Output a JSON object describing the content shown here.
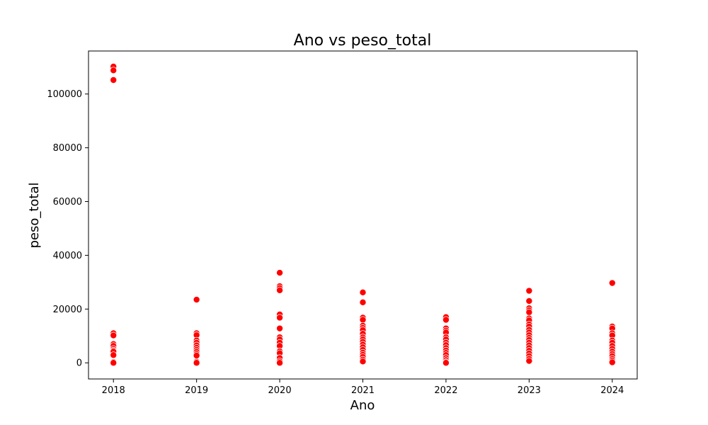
{
  "chart_data": {
    "type": "scatter",
    "title": "Ano vs peso_total",
    "xlabel": "Ano",
    "ylabel": "peso_total",
    "x_ticks": [
      "2018",
      "2019",
      "2020",
      "2021",
      "2022",
      "2023",
      "2024"
    ],
    "y_ticks": [
      "0",
      "20000",
      "40000",
      "60000",
      "80000",
      "100000"
    ],
    "xlim": [
      2017.7,
      2024.3
    ],
    "ylim": [
      -6000,
      116000
    ],
    "grid": false,
    "legend": "none",
    "marker_color": "#ff0000",
    "marker_edge_color": "#ffffff",
    "points": [
      {
        "x": 2018,
        "y": 110200
      },
      {
        "x": 2018,
        "y": 108800
      },
      {
        "x": 2018,
        "y": 105200
      },
      {
        "x": 2018,
        "y": 11000
      },
      {
        "x": 2018,
        "y": 10200
      },
      {
        "x": 2018,
        "y": 7000
      },
      {
        "x": 2018,
        "y": 6300
      },
      {
        "x": 2018,
        "y": 5200
      },
      {
        "x": 2018,
        "y": 4600
      },
      {
        "x": 2018,
        "y": 4200
      },
      {
        "x": 2018,
        "y": 2900
      },
      {
        "x": 2018,
        "y": 300
      },
      {
        "x": 2018,
        "y": 0
      },
      {
        "x": 2019,
        "y": 23500
      },
      {
        "x": 2019,
        "y": 11000
      },
      {
        "x": 2019,
        "y": 10300
      },
      {
        "x": 2019,
        "y": 8300
      },
      {
        "x": 2019,
        "y": 7500
      },
      {
        "x": 2019,
        "y": 6500
      },
      {
        "x": 2019,
        "y": 5600
      },
      {
        "x": 2019,
        "y": 4800
      },
      {
        "x": 2019,
        "y": 4100
      },
      {
        "x": 2019,
        "y": 3300
      },
      {
        "x": 2019,
        "y": 2700
      },
      {
        "x": 2019,
        "y": 400
      },
      {
        "x": 2019,
        "y": 0
      },
      {
        "x": 2020,
        "y": 33500
      },
      {
        "x": 2020,
        "y": 28500
      },
      {
        "x": 2020,
        "y": 27800
      },
      {
        "x": 2020,
        "y": 27000
      },
      {
        "x": 2020,
        "y": 18000
      },
      {
        "x": 2020,
        "y": 16800
      },
      {
        "x": 2020,
        "y": 12800
      },
      {
        "x": 2020,
        "y": 9500
      },
      {
        "x": 2020,
        "y": 8700
      },
      {
        "x": 2020,
        "y": 7500
      },
      {
        "x": 2020,
        "y": 6300
      },
      {
        "x": 2020,
        "y": 4300
      },
      {
        "x": 2020,
        "y": 3600
      },
      {
        "x": 2020,
        "y": 1800
      },
      {
        "x": 2020,
        "y": 600
      },
      {
        "x": 2020,
        "y": 0
      },
      {
        "x": 2021,
        "y": 26200
      },
      {
        "x": 2021,
        "y": 22500
      },
      {
        "x": 2021,
        "y": 16800
      },
      {
        "x": 2021,
        "y": 16000
      },
      {
        "x": 2021,
        "y": 13800
      },
      {
        "x": 2021,
        "y": 13000
      },
      {
        "x": 2021,
        "y": 12200
      },
      {
        "x": 2021,
        "y": 10800
      },
      {
        "x": 2021,
        "y": 9500
      },
      {
        "x": 2021,
        "y": 8700
      },
      {
        "x": 2021,
        "y": 7800
      },
      {
        "x": 2021,
        "y": 6800
      },
      {
        "x": 2021,
        "y": 5800
      },
      {
        "x": 2021,
        "y": 4800
      },
      {
        "x": 2021,
        "y": 3800
      },
      {
        "x": 2021,
        "y": 3000
      },
      {
        "x": 2021,
        "y": 2200
      },
      {
        "x": 2021,
        "y": 1200
      },
      {
        "x": 2021,
        "y": 500
      },
      {
        "x": 2022,
        "y": 17000
      },
      {
        "x": 2022,
        "y": 16000
      },
      {
        "x": 2022,
        "y": 12800
      },
      {
        "x": 2022,
        "y": 12000
      },
      {
        "x": 2022,
        "y": 11300
      },
      {
        "x": 2022,
        "y": 9500
      },
      {
        "x": 2022,
        "y": 8700
      },
      {
        "x": 2022,
        "y": 7500
      },
      {
        "x": 2022,
        "y": 6600
      },
      {
        "x": 2022,
        "y": 5500
      },
      {
        "x": 2022,
        "y": 4600
      },
      {
        "x": 2022,
        "y": 3700
      },
      {
        "x": 2022,
        "y": 2900
      },
      {
        "x": 2022,
        "y": 1800
      },
      {
        "x": 2022,
        "y": 1000
      },
      {
        "x": 2022,
        "y": 300
      },
      {
        "x": 2022,
        "y": 0
      },
      {
        "x": 2023,
        "y": 26800
      },
      {
        "x": 2023,
        "y": 23000
      },
      {
        "x": 2023,
        "y": 20300
      },
      {
        "x": 2023,
        "y": 19500
      },
      {
        "x": 2023,
        "y": 18800
      },
      {
        "x": 2023,
        "y": 16500
      },
      {
        "x": 2023,
        "y": 15800
      },
      {
        "x": 2023,
        "y": 14300
      },
      {
        "x": 2023,
        "y": 13500
      },
      {
        "x": 2023,
        "y": 12300
      },
      {
        "x": 2023,
        "y": 11300
      },
      {
        "x": 2023,
        "y": 10300
      },
      {
        "x": 2023,
        "y": 9300
      },
      {
        "x": 2023,
        "y": 8500
      },
      {
        "x": 2023,
        "y": 7500
      },
      {
        "x": 2023,
        "y": 6500
      },
      {
        "x": 2023,
        "y": 5500
      },
      {
        "x": 2023,
        "y": 4500
      },
      {
        "x": 2023,
        "y": 3500
      },
      {
        "x": 2023,
        "y": 2500
      },
      {
        "x": 2023,
        "y": 1500
      },
      {
        "x": 2023,
        "y": 700
      },
      {
        "x": 2024,
        "y": 29700
      },
      {
        "x": 2024,
        "y": 13500
      },
      {
        "x": 2024,
        "y": 12800
      },
      {
        "x": 2024,
        "y": 11000
      },
      {
        "x": 2024,
        "y": 10200
      },
      {
        "x": 2024,
        "y": 8300
      },
      {
        "x": 2024,
        "y": 7500
      },
      {
        "x": 2024,
        "y": 6300
      },
      {
        "x": 2024,
        "y": 5200
      },
      {
        "x": 2024,
        "y": 4200
      },
      {
        "x": 2024,
        "y": 3300
      },
      {
        "x": 2024,
        "y": 2500
      },
      {
        "x": 2024,
        "y": 1500
      },
      {
        "x": 2024,
        "y": 800
      },
      {
        "x": 2024,
        "y": 200
      }
    ]
  }
}
